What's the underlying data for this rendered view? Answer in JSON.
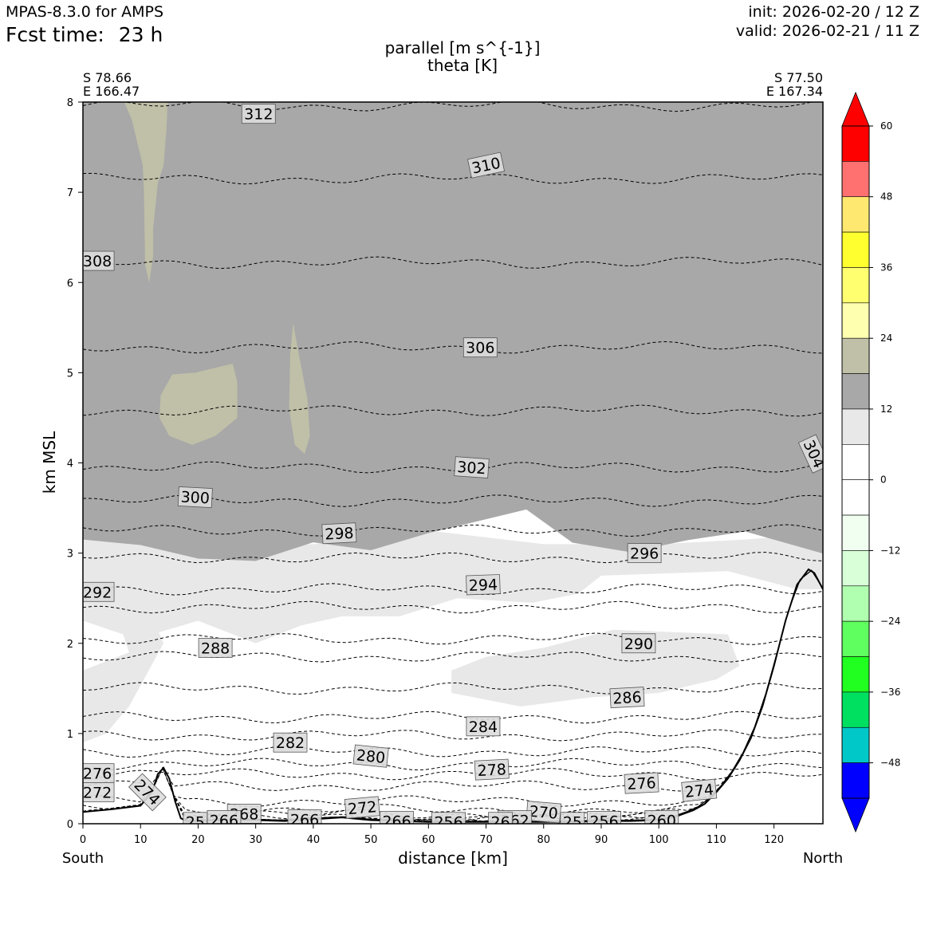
{
  "header": {
    "model": "MPAS-8.3.0 for AMPS",
    "fcst_label": "Fcst time:",
    "fcst_value": "23 h",
    "init": "init: 2026-02-20 / 12 Z",
    "valid": "valid: 2026-02-21 / 11 Z"
  },
  "chart_data": {
    "type": "contour",
    "title": "parallel [m s^{-1}]",
    "subtitle": "theta [K]",
    "xlabel": "distance [km]",
    "ylabel": "km MSL",
    "xlim": [
      0,
      128.5
    ],
    "ylim": [
      0,
      8
    ],
    "xticks": [
      0,
      10,
      20,
      30,
      40,
      50,
      60,
      70,
      80,
      90,
      100,
      110,
      120
    ],
    "yticks": [
      0,
      1,
      2,
      3,
      4,
      5,
      6,
      7,
      8
    ],
    "left_point": {
      "lat": "S 78.66",
      "lon": "E 166.47"
    },
    "right_point": {
      "lat": "S 77.50",
      "lon": "E 167.34"
    },
    "left_end": "South",
    "right_end": "North",
    "filled_field": {
      "name": "parallel wind",
      "units": "m s^{-1}",
      "regions": [
        {
          "level": "12 to 18",
          "y_bottom_km": [
            3.15,
            3.05,
            2.95,
            2.95,
            3.1,
            3.0,
            3.25,
            3.4,
            3.45,
            3.1,
            3.05,
            3.15,
            3.2,
            3.0
          ],
          "x_km": [
            0,
            10,
            20,
            30,
            40,
            50,
            60,
            70,
            77,
            85,
            95,
            105,
            115,
            128.5
          ]
        },
        {
          "level": "18 to 24",
          "patches": [
            "x 7-15 km, 6.0-8.0 km",
            "x 13-27 km, 4.3-5.1 km",
            "x 36-40 km, 4.1-5.6 km"
          ]
        },
        {
          "level": "6 to 12",
          "patches": [
            "x 0-128 km, 1.0-3.1 km (partial)"
          ]
        }
      ]
    },
    "contours": {
      "name": "theta",
      "units": "K",
      "levels": [
        {
          "value": 312,
          "y_km": 7.96
        },
        {
          "value": 310,
          "y_km": 7.15
        },
        {
          "value": 308,
          "y_km": 6.22
        },
        {
          "value": 306,
          "y_km": 5.28
        },
        {
          "value": 304,
          "y_km": 4.58
        },
        {
          "value": 302,
          "y_km": 3.95
        },
        {
          "value": 300,
          "y_km": 3.58
        },
        {
          "value": 298,
          "y_km": 3.25
        },
        {
          "value": 296,
          "y_km": 2.95
        },
        {
          "value": 294,
          "y_km": 2.6
        },
        {
          "value": 292,
          "y_km": 2.4
        },
        {
          "value": 290,
          "y_km": 2.05
        },
        {
          "value": 288,
          "y_km": 1.85
        },
        {
          "value": 286,
          "y_km": 1.5
        },
        {
          "value": 284,
          "y_km": 1.18
        },
        {
          "value": 282,
          "y_km": 0.98
        },
        {
          "value": 280,
          "y_km": 0.8
        },
        {
          "value": 278,
          "y_km": 0.66
        },
        {
          "value": 276,
          "y_km": 0.55
        },
        {
          "value": 274,
          "y_km": 0.42
        },
        {
          "value": 272,
          "y_km": 0.25
        },
        {
          "value": 270,
          "y_km": 0.15
        },
        {
          "value": 268,
          "y_km": 0.1
        },
        {
          "value": 266,
          "y_km": 0.06
        },
        {
          "value": 264,
          "y_km": 0.04
        },
        {
          "value": 262,
          "y_km": 0.03
        },
        {
          "value": 260,
          "y_km": 0.02
        },
        {
          "value": 258,
          "y_km": 0.015
        },
        {
          "value": 256,
          "y_km": 0.01
        }
      ],
      "labels": [
        {
          "text": "312",
          "x": 30.5,
          "y": 7.87,
          "rot": 0
        },
        {
          "text": "310",
          "x": 70.0,
          "y": 7.3,
          "rot": -12
        },
        {
          "text": "308",
          "x": 2.5,
          "y": 6.24,
          "rot": 0
        },
        {
          "text": "306",
          "x": 69.0,
          "y": 5.28,
          "rot": 0
        },
        {
          "text": "304",
          "x": 127.0,
          "y": 4.1,
          "rot": 65
        },
        {
          "text": "302",
          "x": 67.5,
          "y": 3.95,
          "rot": 4
        },
        {
          "text": "300",
          "x": 19.5,
          "y": 3.62,
          "rot": 3
        },
        {
          "text": "298",
          "x": 44.5,
          "y": 3.22,
          "rot": -3
        },
        {
          "text": "296",
          "x": 97.5,
          "y": 3.0,
          "rot": 0
        },
        {
          "text": "294",
          "x": 69.5,
          "y": 2.65,
          "rot": -2
        },
        {
          "text": "292",
          "x": 2.5,
          "y": 2.57,
          "rot": 0
        },
        {
          "text": "290",
          "x": 96.5,
          "y": 2.0,
          "rot": 0
        },
        {
          "text": "288",
          "x": 23.0,
          "y": 1.95,
          "rot": 0
        },
        {
          "text": "286",
          "x": 94.5,
          "y": 1.4,
          "rot": -3
        },
        {
          "text": "284",
          "x": 69.5,
          "y": 1.08,
          "rot": 0
        },
        {
          "text": "282",
          "x": 36.0,
          "y": 0.9,
          "rot": 0
        },
        {
          "text": "280",
          "x": 50.0,
          "y": 0.75,
          "rot": 6
        },
        {
          "text": "278",
          "x": 71.0,
          "y": 0.6,
          "rot": -3
        },
        {
          "text": "276",
          "x": 2.5,
          "y": 0.56,
          "rot": 0
        },
        {
          "text": "276",
          "x": 97.0,
          "y": 0.45,
          "rot": -3
        },
        {
          "text": "274",
          "x": 11.2,
          "y": 0.35,
          "rot": 45
        },
        {
          "text": "274",
          "x": 107.0,
          "y": 0.37,
          "rot": -6
        },
        {
          "text": "272",
          "x": 2.5,
          "y": 0.35,
          "rot": 0
        },
        {
          "text": "272",
          "x": 48.5,
          "y": 0.18,
          "rot": -5
        },
        {
          "text": "270",
          "x": 80.0,
          "y": 0.13,
          "rot": 5
        },
        {
          "text": "268",
          "x": 28.0,
          "y": 0.11,
          "rot": 0
        },
        {
          "text": "266",
          "x": 38.5,
          "y": 0.05,
          "rot": 0
        },
        {
          "text": "266",
          "x": 54.5,
          "y": 0.03,
          "rot": 0
        },
        {
          "text": "266",
          "x": 24.5,
          "y": 0.04,
          "rot": 0
        },
        {
          "text": "256",
          "x": 63.5,
          "y": 0.02,
          "rot": 0
        },
        {
          "text": "262",
          "x": 75.0,
          "y": 0.04,
          "rot": 0
        },
        {
          "text": "256",
          "x": 90.5,
          "y": 0.03,
          "rot": 0
        },
        {
          "text": "260",
          "x": 100.5,
          "y": 0.04,
          "rot": 0
        },
        {
          "text": "25",
          "x": 19.5,
          "y": 0.02,
          "rot": 0
        },
        {
          "text": "26",
          "x": 72.5,
          "y": 0.02,
          "rot": 0
        },
        {
          "text": "25",
          "x": 85.0,
          "y": 0.02,
          "rot": 0
        }
      ]
    },
    "terrain": {
      "x_km": [
        0,
        5,
        10,
        12,
        13,
        14,
        15,
        16,
        17,
        18,
        20,
        25,
        30,
        35,
        40,
        45,
        50,
        55,
        60,
        65,
        70,
        75,
        80,
        85,
        90,
        95,
        100,
        103,
        106,
        108,
        110,
        112,
        114,
        116,
        118,
        120,
        122,
        124,
        126,
        127,
        128.5
      ],
      "y_km": [
        0.13,
        0.16,
        0.2,
        0.35,
        0.55,
        0.62,
        0.5,
        0.25,
        0.06,
        0.03,
        0.03,
        0.04,
        0.04,
        0.03,
        0.05,
        0.07,
        0.04,
        0.03,
        0.02,
        0.02,
        0.02,
        0.02,
        0.02,
        0.02,
        0.03,
        0.03,
        0.04,
        0.08,
        0.15,
        0.22,
        0.35,
        0.5,
        0.7,
        0.95,
        1.3,
        1.75,
        2.25,
        2.65,
        2.82,
        2.78,
        2.6
      ]
    },
    "colorbar": {
      "ticks": [
        60,
        48,
        36,
        24,
        12,
        0,
        -12,
        -24,
        -36,
        -48
      ],
      "tick_labels": [
        "60",
        "48",
        "36",
        "24",
        "12",
        "0",
        "−12",
        "−24",
        "−36",
        "−48"
      ],
      "levels": [
        60,
        54,
        48,
        42,
        36,
        30,
        24,
        18,
        12,
        6,
        0,
        -6,
        -12,
        -18,
        -24,
        -30,
        -36,
        -42,
        -48,
        -54
      ],
      "colors": [
        "#ff0000",
        "#ff7070",
        "#ffe870",
        "#ffff30",
        "#ffff70",
        "#ffffb0",
        "#c0c0a8",
        "#a8a8a8",
        "#e8e8e8",
        "#ffffff",
        "#ffffff",
        "#f0fff0",
        "#d8ffd8",
        "#b0ffb0",
        "#60ff60",
        "#20ff20",
        "#00e060",
        "#00c8c8",
        "#0000ff"
      ],
      "over_color": "#ff0000",
      "under_color": "#0000ff"
    },
    "palette": {
      "shade_gray": "#a8a8a8",
      "shade_light": "#e8e8e8",
      "shade_khaki": "#c0c0a8",
      "terrain_line": "#000000"
    }
  }
}
